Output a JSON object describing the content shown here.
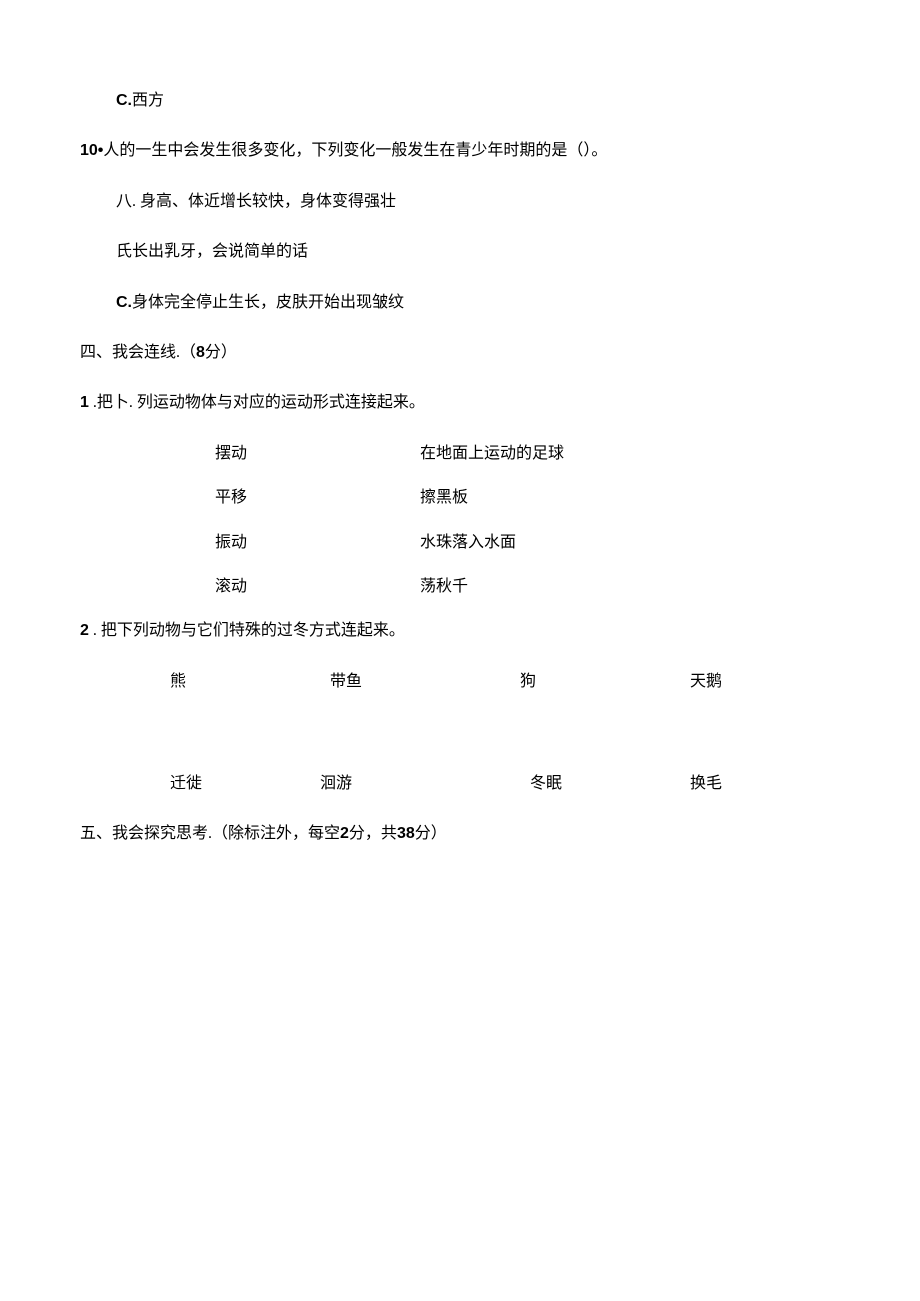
{
  "q10_optionC_prefix": "C.",
  "q10_optionC_text": "西方",
  "q10_number": "10•",
  "q10_stem": "人的一生中会发生很多变化，下列变化一般发生在青少年时期的是（）。",
  "q10_optionA": "八. 身高、体近增长较快，身体变得强壮",
  "q10_optionB": "氏长出乳牙，会说简单的话",
  "q10_optionC2_prefix": "C.",
  "q10_optionC2_text": "身体完全停止生长，皮肤开始出现皱纹",
  "section4_title": "四、我会连线.（",
  "section4_points_num": "8",
  "section4_points_suffix": "分）",
  "q4_1_number": "1",
  "q4_1_stem": " .把卜. 列运动物体与对应的运动形式连接起来。",
  "match1": {
    "left": [
      "摆动",
      "平移",
      "振动",
      "滚动"
    ],
    "right": [
      "在地面上运动的足球",
      "擦黑板",
      "水珠落入水面",
      "荡秋千"
    ]
  },
  "q4_2_number": "2",
  "q4_2_stem": " . 把下列动物与它们特殊的过冬方式连起来。",
  "match2": {
    "animals": [
      "熊",
      "带鱼",
      "狗",
      "天鹅"
    ],
    "methods": [
      "迁徙",
      "洄游",
      "冬眠",
      "换毛"
    ]
  },
  "section5_title": "五、我会探究思考.（除标注外，每空",
  "section5_points_1": "2",
  "section5_mid": "分，共",
  "section5_points_2": "38",
  "section5_suffix": "分）"
}
